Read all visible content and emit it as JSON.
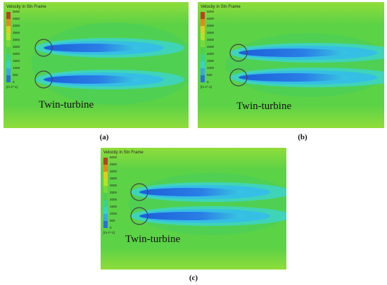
{
  "panels": [
    {
      "legend": {
        "title": "Velocity in Stn Frame",
        "ticks": [
          5000,
          4500,
          4000,
          3500,
          3000,
          2500,
          2000,
          1500,
          1000,
          500,
          0
        ],
        "unit": "[m s^-1]"
      },
      "label": "Twin-turbine",
      "caption": "(a)"
    },
    {
      "legend": {
        "title": "Velocity in Stn Frame",
        "ticks": [
          5000,
          4500,
          4000,
          3500,
          3000,
          2500,
          2000,
          1500,
          1000,
          500,
          0
        ],
        "unit": "[m s^-1]"
      },
      "label": "Twin-turbine",
      "caption": "(b)"
    },
    {
      "legend": {
        "title": "Velocity in Stn Frame",
        "ticks": [
          5000,
          4500,
          4000,
          3500,
          3000,
          2500,
          2000,
          1500,
          1000,
          500,
          0
        ],
        "unit": "[m s^-1]"
      },
      "label": "Twin-turbine",
      "caption": "(c)"
    }
  ]
}
